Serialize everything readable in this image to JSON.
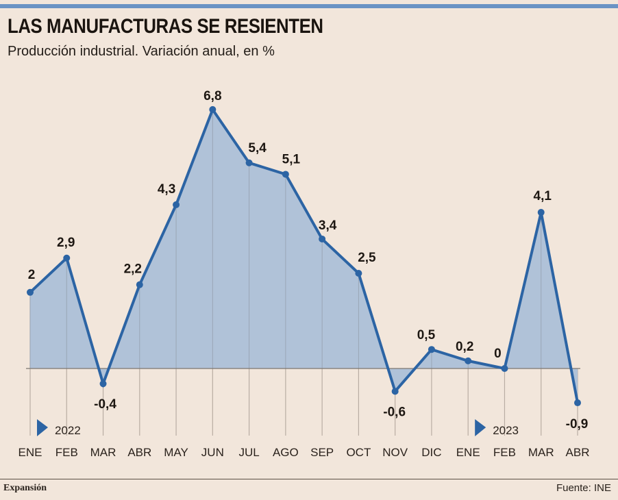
{
  "header": {
    "title": "LAS MANUFACTURAS SE RESIENTEN",
    "subtitle": "Producción industrial. Variación anual, en %"
  },
  "footer": {
    "brand": "Expansión",
    "source": "Fuente: INE"
  },
  "colors": {
    "background": "#f2e6db",
    "accent_bar": "#6a93c4",
    "line": "#2c64a4",
    "area": "#b0c2d8",
    "grid": "#b9ada3",
    "baseline": "#7d7770",
    "text": "#1d1712"
  },
  "chart_data": {
    "type": "area",
    "title": "LAS MANUFACTURAS SE RESIENTEN",
    "subtitle": "Producción industrial. Variación anual, en %",
    "xlabel": "",
    "ylabel": "",
    "categories": [
      "ENE",
      "FEB",
      "MAR",
      "ABR",
      "MAY",
      "JUN",
      "JUL",
      "AGO",
      "SEP",
      "OCT",
      "NOV",
      "DIC",
      "ENE",
      "FEB",
      "MAR",
      "ABR"
    ],
    "values": [
      2,
      2.9,
      -0.4,
      2.2,
      4.3,
      6.8,
      5.4,
      5.1,
      3.4,
      2.5,
      -0.6,
      0.5,
      0.2,
      0,
      4.1,
      -0.9
    ],
    "value_labels": [
      "2",
      "2,9",
      "-0,4",
      "2,2",
      "4,3",
      "6,8",
      "5,4",
      "5,1",
      "3,4",
      "2,5",
      "-0,6",
      "0,5",
      "0,2",
      "0",
      "4,1",
      "-0,9"
    ],
    "year_markers": [
      {
        "label": "2022",
        "category_index": 0
      },
      {
        "label": "2023",
        "category_index": 12
      }
    ],
    "ylim": [
      -1.8,
      7.5
    ],
    "grid": "vertical",
    "legend": "none",
    "source": "Fuente: INE"
  }
}
